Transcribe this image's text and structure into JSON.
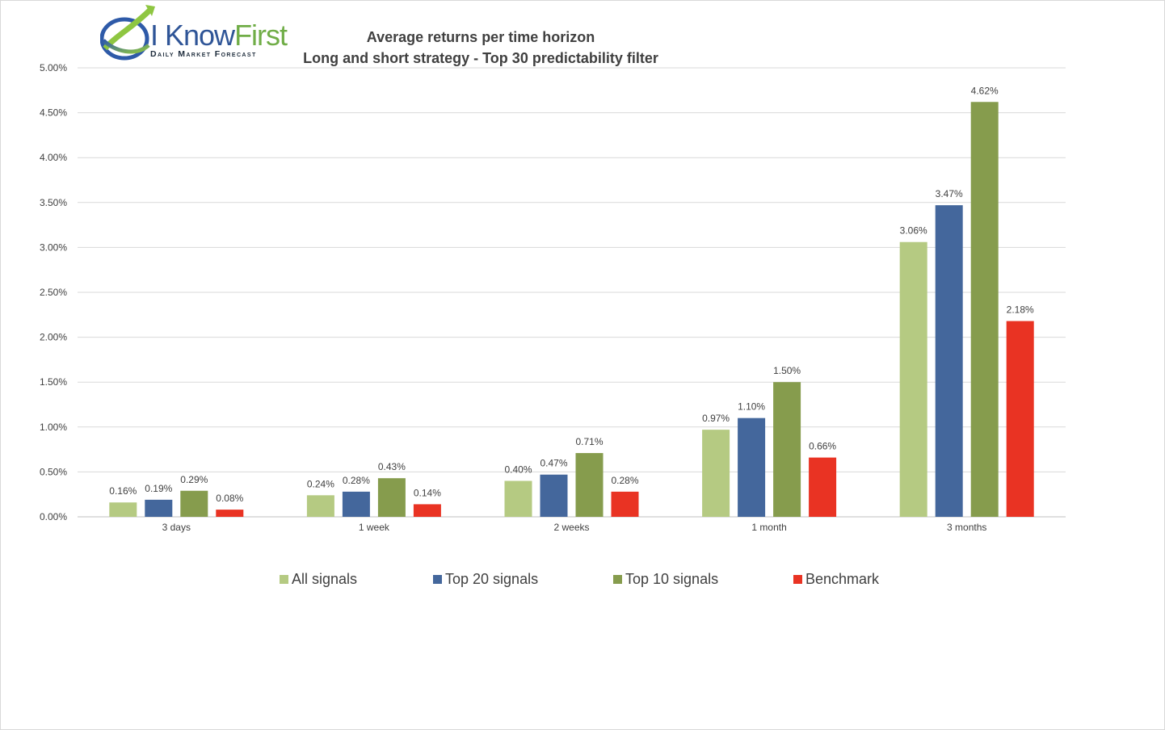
{
  "logo": {
    "word_part1": "I Know",
    "word_part2": "First",
    "tagline": "Daily Market Forecast"
  },
  "chart_data": {
    "type": "bar",
    "title": "Average returns per time horizon",
    "subtitle": "Long and short strategy - Top 30 predictability filter",
    "categories": [
      "3 days",
      "1 week",
      "2 weeks",
      "1 month",
      "3 months"
    ],
    "series": [
      {
        "name": "All signals",
        "color": "#b5ca82",
        "values": [
          0.16,
          0.24,
          0.4,
          0.97,
          3.06
        ],
        "labels": [
          "0.16%",
          "0.24%",
          "0.40%",
          "0.97%",
          "3.06%"
        ]
      },
      {
        "name": "Top 20 signals",
        "color": "#44679c",
        "values": [
          0.19,
          0.28,
          0.47,
          1.1,
          3.47
        ],
        "labels": [
          "0.19%",
          "0.28%",
          "0.47%",
          "1.10%",
          "3.47%"
        ]
      },
      {
        "name": "Top 10 signals",
        "color": "#869c4d",
        "values": [
          0.29,
          0.43,
          0.71,
          1.5,
          4.62
        ],
        "labels": [
          "0.29%",
          "0.43%",
          "0.71%",
          "1.50%",
          "4.62%"
        ]
      },
      {
        "name": "Benchmark",
        "color": "#e93323",
        "values": [
          0.08,
          0.14,
          0.28,
          0.66,
          2.18
        ],
        "labels": [
          "0.08%",
          "0.14%",
          "0.28%",
          "0.66%",
          "2.18%"
        ]
      }
    ],
    "ylim": [
      0,
      5
    ],
    "yticks": [
      0,
      0.5,
      1,
      1.5,
      2,
      2.5,
      3,
      3.5,
      4,
      4.5,
      5
    ],
    "ytick_labels": [
      "0.00%",
      "0.50%",
      "1.00%",
      "1.50%",
      "2.00%",
      "2.50%",
      "3.00%",
      "3.50%",
      "4.00%",
      "4.50%",
      "5.00%"
    ],
    "grid": true,
    "legend_position": "bottom",
    "gridline_color": "#d9d9d9"
  }
}
